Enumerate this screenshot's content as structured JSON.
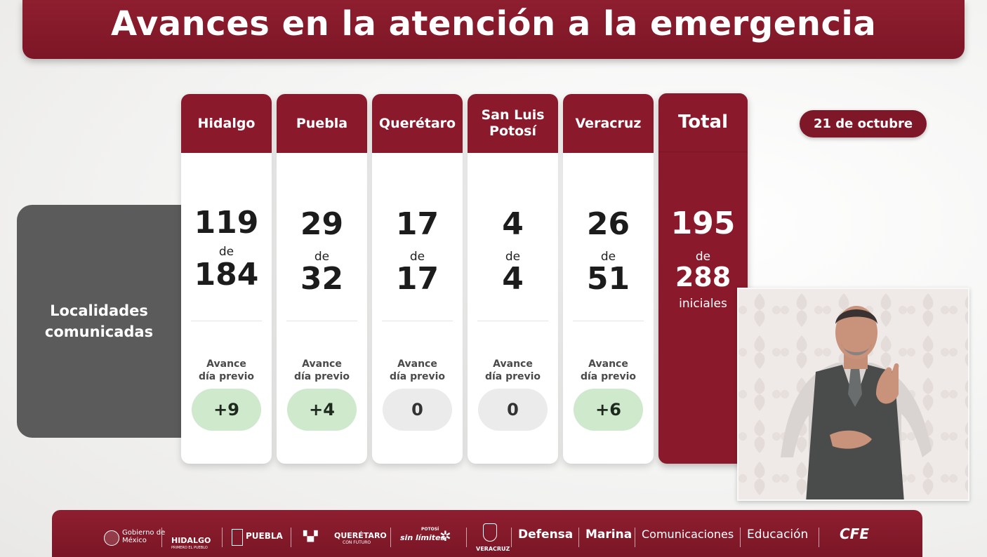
{
  "title": "Avances en la atención a la emergencia",
  "row_label": "Localidades\ncomunicadas",
  "date": "21 de octubre",
  "de_label": "de",
  "avance_label": "Avance\ndía previo",
  "states": [
    {
      "name": "Hidalgo",
      "done": "119",
      "total": "184",
      "delta": "+9",
      "positive": true
    },
    {
      "name": "Puebla",
      "done": "29",
      "total": "32",
      "delta": "+4",
      "positive": true
    },
    {
      "name": "Querétaro",
      "done": "17",
      "total": "17",
      "delta": "0",
      "positive": false
    },
    {
      "name": "San Luis\nPotosí",
      "done": "4",
      "total": "4",
      "delta": "0",
      "positive": false
    },
    {
      "name": "Veracruz",
      "done": "26",
      "total": "51",
      "delta": "+6",
      "positive": true
    }
  ],
  "total": {
    "label": "Total",
    "done": "195",
    "total": "288",
    "suffix": "iniciales"
  },
  "footer_logos": {
    "gobierno": "Gobierno de\nMéxico",
    "hidalgo": "HIDALGO",
    "hidalgo_sub": "PRIMERO EL PUEBLO",
    "puebla": "PUEBLA",
    "queretaro": "QUERÉTARO",
    "queretaro_sub": "CON FUTURO",
    "potosi": "sin límites",
    "potosi_top": "POTOSÍ",
    "veracruz": "VERACRUZ",
    "defensa": "Defensa",
    "marina": "Marina",
    "comunicaciones": "Comunicaciones",
    "educacion": "Educación",
    "cfe": "CFE"
  },
  "colors": {
    "brand": "#8a1a2b",
    "positive_pill": "#cfe9cd",
    "neutral_pill": "#ebebeb",
    "label_panel": "#5a5b5a"
  }
}
